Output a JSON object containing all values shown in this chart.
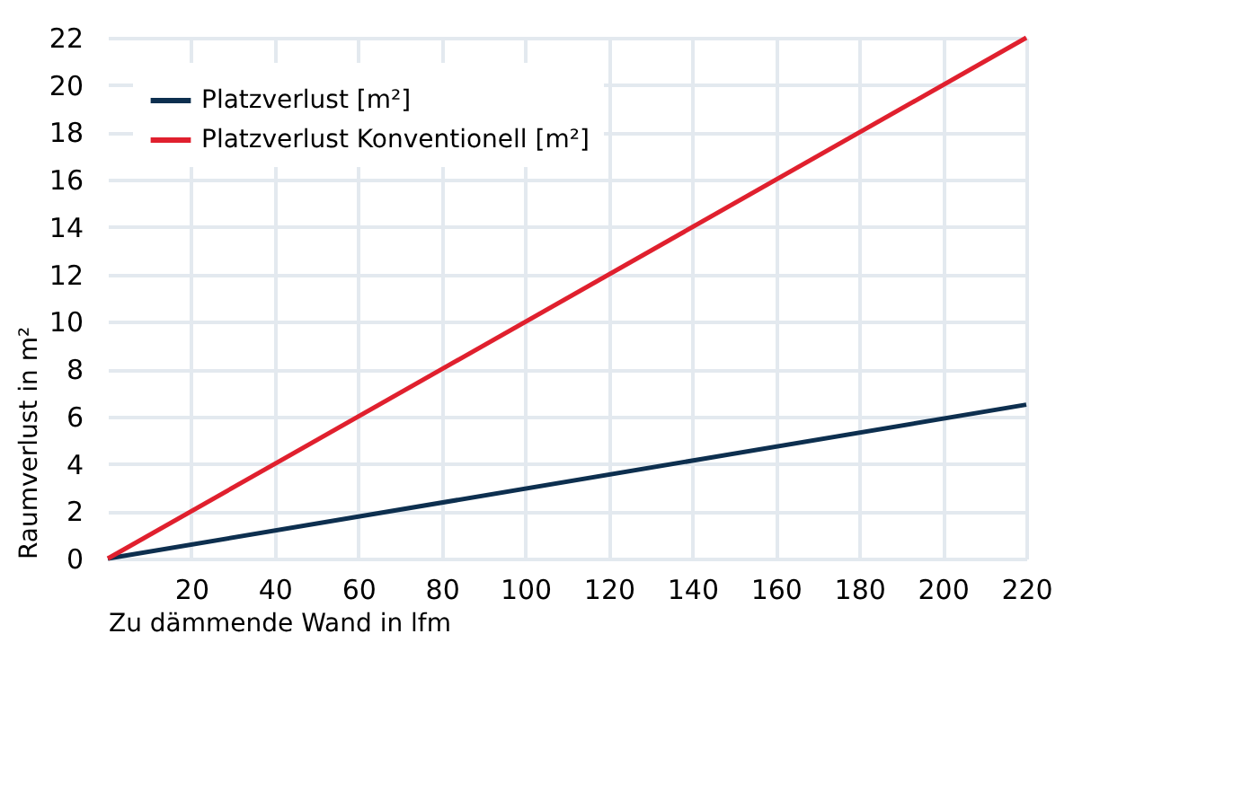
{
  "chart_data": {
    "type": "line",
    "xlabel": "Zu dämmende Wand in lfm",
    "ylabel": "Raumverlust in m²",
    "x": [
      0,
      220
    ],
    "series": [
      {
        "name": "Platzverlust [m²]",
        "color": "#0d2f4f",
        "values": [
          0,
          6.5
        ]
      },
      {
        "name": "Platzverlust Konventionell [m²]",
        "color": "#e0202e",
        "values": [
          0,
          22
        ]
      }
    ],
    "xlim": [
      0,
      220
    ],
    "xticks": [
      20,
      40,
      60,
      80,
      100,
      120,
      140,
      160,
      180,
      200,
      220
    ],
    "ylim": [
      0,
      22
    ],
    "yticks": [
      0,
      2,
      4,
      6,
      8,
      10,
      12,
      14,
      16,
      18,
      20,
      22
    ],
    "grid": true,
    "legend": "top left",
    "marker": "none",
    "line_style": "solid"
  }
}
